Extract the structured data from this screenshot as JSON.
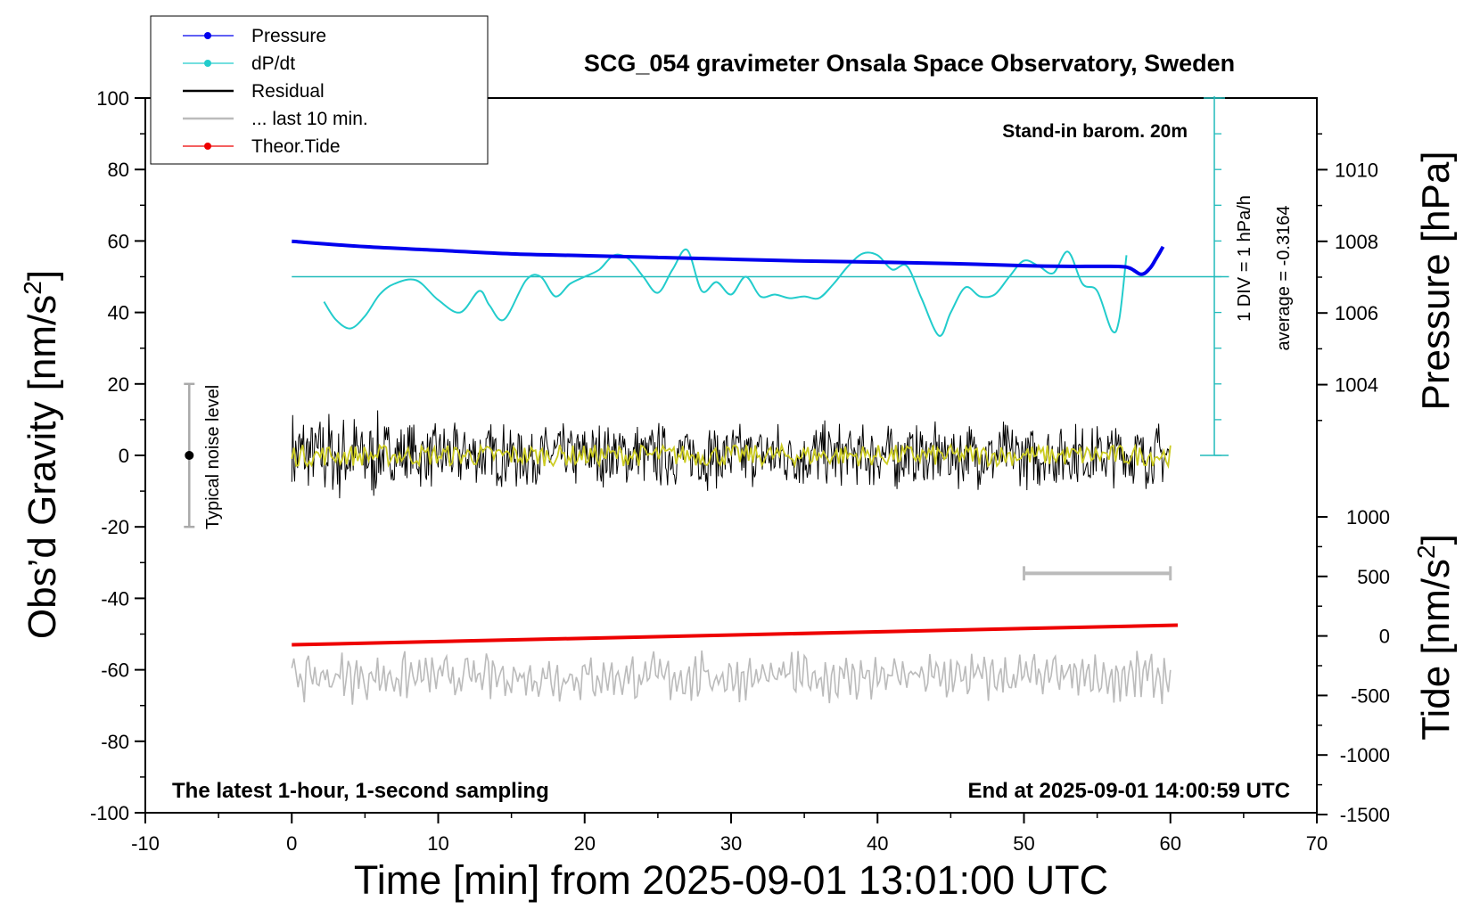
{
  "chart_data": {
    "type": "line",
    "title": "SCG_054 gravimeter Onsala Space Observatory, Sweden",
    "xlabel": "Time [min] from 2025-09-01 13:01:00 UTC",
    "ylabel_left": "Obs’d Gravity [nm/s",
    "ylabel_left_sup": "2",
    "ylabel_left_close": "]",
    "ylabel_right_pressure": "Pressure [hPa]",
    "ylabel_right_tide": "Tide [nm/s",
    "ylabel_right_tide_sup": "2",
    "ylabel_right_tide_close": "]",
    "xlim": [
      -10,
      70
    ],
    "ylim": [
      -100,
      100
    ],
    "x_ticks": [
      "-10",
      "0",
      "10",
      "20",
      "30",
      "40",
      "50",
      "60",
      "70"
    ],
    "y_ticks": [
      "100",
      "80",
      "60",
      "40",
      "20",
      "0",
      "-20",
      "-40",
      "-60",
      "-80",
      "-100"
    ],
    "pressure_axis": {
      "ticks": [
        "1010",
        "1008",
        "1006",
        "1004"
      ],
      "values": [
        1010,
        1008,
        1006,
        1004
      ],
      "range": [
        1002,
        1012
      ]
    },
    "tide_axis": {
      "ticks": [
        "1000",
        "500",
        "0",
        "-500",
        "-1000",
        "-1500"
      ],
      "values": [
        1000,
        500,
        0,
        -500,
        -1000,
        -1500
      ],
      "range": [
        -1500,
        1000
      ]
    },
    "annotations": {
      "stand_in": "Stand-in barom. 20m",
      "div_note": "1 DIV = 1 hPa/h",
      "average_note": "average = -0.3164",
      "noise_label": "Typical noise level",
      "bottom_left": "The latest 1-hour, 1-second sampling",
      "bottom_right": "End at 2025-09-01 14:00:59 UTC"
    },
    "legend": [
      {
        "label": "Pressure",
        "color": "#0000ee",
        "marker": true
      },
      {
        "label": "dP/dt",
        "color": "#22cccc",
        "marker": true
      },
      {
        "label": "Residual",
        "color": "#000000",
        "marker": false
      },
      {
        "label": "... last 10 min.",
        "color": "#bbbbbb",
        "marker": false
      },
      {
        "label": "Theor.Tide",
        "color": "#ee0000",
        "marker": true
      }
    ],
    "series": [
      {
        "name": "Pressure",
        "unit": "hPa",
        "color": "#0000ee",
        "x": [
          0,
          5,
          10,
          15,
          20,
          25,
          30,
          35,
          40,
          45,
          50,
          53,
          55,
          57,
          58,
          58.6,
          59,
          59.5
        ],
        "values": [
          1008.0,
          1007.85,
          1007.75,
          1007.65,
          1007.6,
          1007.55,
          1007.5,
          1007.45,
          1007.42,
          1007.38,
          1007.32,
          1007.3,
          1007.3,
          1007.28,
          1007.08,
          1007.25,
          1007.5,
          1007.85
        ]
      },
      {
        "name": "dP/dt",
        "unit": "nm/s2 plot units (1 DIV = 1 hPa/h)",
        "color": "#22cccc",
        "x": [
          2.2,
          3,
          4,
          5,
          6,
          7,
          8.5,
          10,
          11.5,
          12.8,
          13.5,
          14.5,
          16,
          17,
          18,
          19,
          20,
          21,
          22,
          23,
          24,
          25,
          26,
          27,
          28,
          29,
          30,
          31,
          32,
          33,
          34,
          35,
          36,
          37,
          38,
          39,
          40,
          41,
          42,
          43,
          44.2,
          45,
          46,
          47,
          48,
          49,
          50,
          51,
          52,
          53,
          54,
          55,
          56,
          56.5,
          57
        ],
        "values": [
          43,
          38,
          35.5,
          39,
          45,
          48,
          49,
          43.5,
          40,
          46,
          42,
          38,
          49,
          50,
          44.5,
          48,
          50,
          52,
          56,
          55,
          50,
          45.5,
          52,
          57.5,
          46,
          48.5,
          45,
          50,
          44.5,
          45,
          44,
          44.5,
          44,
          48,
          53,
          56.5,
          56,
          52,
          53,
          44,
          33.5,
          40,
          47,
          44.5,
          45,
          50,
          54.5,
          53,
          51,
          57,
          48,
          46,
          35,
          38,
          56
        ]
      },
      {
        "name": "Residual",
        "unit": "nm/s2",
        "color": "#000000",
        "x_range": [
          0,
          60
        ],
        "amplitude": 10
      },
      {
        "name": "Residual smoothed",
        "unit": "nm/s2",
        "color": "#cccc22",
        "x_range": [
          0,
          60
        ],
        "amplitude": 3
      },
      {
        "name": "... last 10 min.",
        "unit": "nm/s2",
        "color": "#bbbbbb",
        "x_range": [
          0,
          60
        ],
        "center": -62,
        "amplitude": 6
      },
      {
        "name": "Theor.Tide",
        "unit": "nm/s2",
        "color": "#ee0000",
        "x": [
          0,
          60.5
        ],
        "values": [
          -53,
          -47.5
        ]
      }
    ],
    "noise_level": {
      "x": -7,
      "center": 0,
      "range": [
        -20,
        20
      ]
    },
    "scale_bar": {
      "x": [
        50,
        60
      ],
      "y": -33
    },
    "dpdt_baseline": 50
  }
}
